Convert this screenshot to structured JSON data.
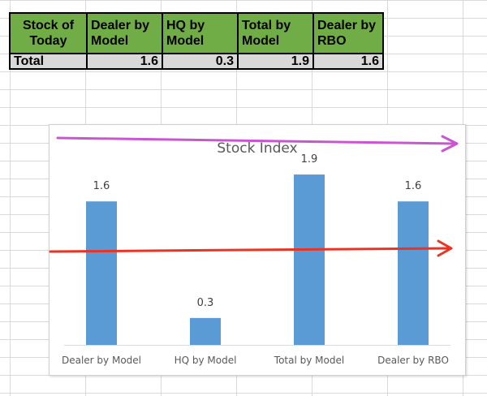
{
  "table": {
    "headers": [
      "Stock of Today",
      "Dealer by Model",
      "HQ by Model",
      "Total by Model",
      "Dealer by RBO"
    ],
    "header_color": "#70ad47",
    "row": {
      "label": "Total",
      "values": [
        "1.6",
        "0.3",
        "1.9",
        "1.6"
      ]
    },
    "row_color": "#d9d9d9"
  },
  "chart_data": {
    "type": "bar",
    "title": "Stock Index",
    "categories": [
      "Dealer by Model",
      "HQ by Model",
      "Total by Model",
      "Dealer by RBO"
    ],
    "values": [
      1.6,
      0.3,
      1.9,
      1.6
    ],
    "value_labels": [
      "1.6",
      "0.3",
      "1.9",
      "1.6"
    ],
    "bar_color": "#5b9bd5",
    "ylim": [
      0,
      2
    ],
    "grid": false,
    "legend": "none"
  },
  "annotations": {
    "top_arrow_color": "#c955d1",
    "mid_arrow_color": "#ea3323"
  }
}
